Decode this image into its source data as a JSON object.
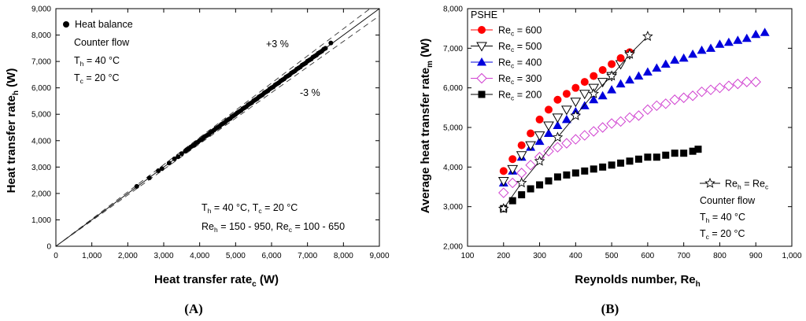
{
  "chart_data": [
    {
      "panel": "A",
      "type": "scatter",
      "xlabel": "Heat transfer rate",
      "xlabel_sub": "c",
      "xlabel_unit": "(W)",
      "ylabel": "Heat transfer rate",
      "ylabel_sub": "h",
      "ylabel_unit": "(W)",
      "xlim": [
        0,
        9000
      ],
      "ylim": [
        0,
        9000
      ],
      "xticks": [
        "0",
        "1,000",
        "2,000",
        "3,000",
        "4,000",
        "5,000",
        "6,000",
        "7,000",
        "8,000",
        "9,000"
      ],
      "yticks": [
        "0",
        "1,000",
        "2,000",
        "3,000",
        "4,000",
        "5,000",
        "6,000",
        "7,000",
        "8,000",
        "9,000"
      ],
      "legend": "Heat balance",
      "lines": [
        {
          "name": "y = x",
          "slope": 1.0,
          "style": "solid"
        },
        {
          "name": "+3 %",
          "slope": 1.03,
          "style": "dashed"
        },
        {
          "name": "-3 %",
          "slope": 0.97,
          "style": "dashed"
        }
      ],
      "annotations": {
        "plus_label": "+3 %",
        "minus_label": "-3 %",
        "flow": "Counter flow",
        "th": {
          "main": "T",
          "sub": "h",
          "rest": " = 40 °C"
        },
        "tc": {
          "main": "T",
          "sub": "c",
          "rest": " = 20 °C"
        },
        "cond_line1": "T_h = 40 °C, T_c = 20 °C",
        "cond_line2": "Re_h = 150 - 950, Re_c = 100 - 650"
      },
      "x": [
        2250,
        2600,
        2850,
        2950,
        3150,
        3300,
        3400,
        3500,
        3600,
        3650,
        3700,
        3750,
        3800,
        3850,
        3900,
        3950,
        4000,
        4050,
        4100,
        4150,
        4200,
        4250,
        4300,
        4350,
        4400,
        4450,
        4500,
        4550,
        4600,
        4650,
        4700,
        4750,
        4800,
        4850,
        4900,
        4950,
        5000,
        5050,
        5100,
        5150,
        5200,
        5250,
        5300,
        5350,
        5400,
        5450,
        5500,
        5550,
        5600,
        5650,
        5700,
        5750,
        5800,
        5850,
        5900,
        5950,
        6000,
        6050,
        6100,
        6150,
        6200,
        6250,
        6300,
        6350,
        6400,
        6450,
        6500,
        6550,
        6600,
        6650,
        6700,
        6750,
        6800,
        6850,
        6900,
        6950,
        7000,
        7050,
        7100,
        7150,
        7200,
        7250,
        7300,
        7350,
        7400,
        7450,
        7500,
        7650
      ],
      "y": [
        2270,
        2590,
        2860,
        2940,
        3150,
        3310,
        3390,
        3510,
        3600,
        3660,
        3700,
        3760,
        3800,
        3840,
        3910,
        3950,
        4010,
        4040,
        4100,
        4160,
        4200,
        4240,
        4310,
        4350,
        4400,
        4460,
        4500,
        4540,
        4610,
        4650,
        4690,
        4760,
        4800,
        4840,
        4910,
        4950,
        5000,
        5060,
        5100,
        5140,
        5210,
        5250,
        5290,
        5360,
        5400,
        5440,
        5510,
        5550,
        5590,
        5660,
        5700,
        5740,
        5810,
        5850,
        5890,
        5960,
        6000,
        6040,
        6110,
        6150,
        6190,
        6260,
        6300,
        6340,
        6410,
        6450,
        6490,
        6560,
        6600,
        6640,
        6710,
        6750,
        6790,
        6860,
        6900,
        6940,
        7010,
        7050,
        7090,
        7160,
        7200,
        7240,
        7310,
        7350,
        7390,
        7460,
        7500,
        7700
      ]
    },
    {
      "panel": "B",
      "type": "scatter",
      "title": "PSHE",
      "xlabel": "Reynolds number, Re",
      "xlabel_sub": "h",
      "ylabel": "Average heat transfer rate",
      "ylabel_sub": "m",
      "ylabel_unit": "(W)",
      "xlim": [
        100,
        1000
      ],
      "ylim": [
        2000,
        8000
      ],
      "xticks": [
        "100",
        "200",
        "300",
        "400",
        "500",
        "600",
        "700",
        "800",
        "900",
        "1,000"
      ],
      "yticks": [
        "2,000",
        "3,000",
        "4,000",
        "5,000",
        "6,000",
        "7,000",
        "8,000"
      ],
      "series": [
        {
          "name": "Re_c = 600",
          "label_main": "Re",
          "label_sub": "c",
          "label_rest": " = 600",
          "marker": "circle",
          "color": "#ff0000",
          "x": [
            200,
            225,
            250,
            275,
            300,
            325,
            350,
            375,
            400,
            425,
            450,
            475,
            500,
            525,
            550
          ],
          "y": [
            3900,
            4200,
            4550,
            4850,
            5200,
            5450,
            5700,
            5850,
            6000,
            6150,
            6300,
            6450,
            6600,
            6750,
            6900
          ]
        },
        {
          "name": "Re_c = 500",
          "label_main": "Re",
          "label_sub": "c",
          "label_rest": " = 500",
          "marker": "triangle-down-open",
          "color": "#000000",
          "x": [
            200,
            225,
            250,
            275,
            300,
            325,
            350,
            375,
            400,
            425,
            450,
            475,
            500,
            525,
            550
          ],
          "y": [
            3650,
            3950,
            4300,
            4550,
            4800,
            5050,
            5250,
            5450,
            5650,
            5850,
            6000,
            6150,
            6300,
            6600,
            6850
          ]
        },
        {
          "name": "Re_c = 400",
          "label_main": "Re",
          "label_sub": "c",
          "label_rest": " = 400",
          "marker": "triangle-up",
          "color": "#0000dd",
          "x": [
            200,
            225,
            250,
            275,
            300,
            325,
            350,
            375,
            400,
            425,
            450,
            475,
            500,
            525,
            550,
            575,
            600,
            625,
            650,
            675,
            700,
            725,
            750,
            775,
            800,
            825,
            850,
            875,
            900,
            925
          ],
          "y": [
            3600,
            3900,
            4250,
            4500,
            4650,
            4850,
            5050,
            5200,
            5400,
            5550,
            5700,
            5800,
            5950,
            6100,
            6200,
            6300,
            6400,
            6500,
            6600,
            6700,
            6750,
            6850,
            6950,
            7000,
            7100,
            7150,
            7200,
            7250,
            7350,
            7400
          ]
        },
        {
          "name": "Re_c = 300",
          "label_main": "Re",
          "label_sub": "c",
          "label_rest": " = 300",
          "marker": "diamond-open",
          "color": "#d040d0",
          "x": [
            200,
            225,
            250,
            275,
            300,
            325,
            350,
            375,
            400,
            425,
            450,
            475,
            500,
            525,
            550,
            575,
            600,
            625,
            650,
            675,
            700,
            725,
            750,
            775,
            800,
            825,
            850,
            875,
            900
          ],
          "y": [
            3350,
            3600,
            3850,
            4050,
            4250,
            4400,
            4500,
            4600,
            4700,
            4800,
            4900,
            5000,
            5100,
            5150,
            5250,
            5300,
            5450,
            5550,
            5600,
            5700,
            5750,
            5800,
            5900,
            5950,
            6000,
            6050,
            6100,
            6150,
            6150
          ]
        },
        {
          "name": "Re_c = 200",
          "label_main": "Re",
          "label_sub": "c",
          "label_rest": " = 200",
          "marker": "square",
          "color": "#000000",
          "x": [
            200,
            225,
            250,
            275,
            300,
            325,
            350,
            375,
            400,
            425,
            450,
            475,
            500,
            525,
            550,
            575,
            600,
            625,
            650,
            675,
            700,
            725,
            740
          ],
          "y": [
            2950,
            3150,
            3300,
            3450,
            3550,
            3650,
            3750,
            3800,
            3850,
            3900,
            3950,
            4000,
            4050,
            4100,
            4150,
            4200,
            4250,
            4250,
            4300,
            4350,
            4350,
            4400,
            4450
          ]
        },
        {
          "name": "Re_h = Re_c",
          "label_main": "Re",
          "label_sub": "h",
          "label_rest": " = Re",
          "label_sub2": "c",
          "marker": "star-open-line",
          "color": "#000000",
          "x": [
            200,
            250,
            300,
            350,
            400,
            450,
            500,
            550,
            600
          ],
          "y": [
            2950,
            3600,
            4150,
            4750,
            5300,
            5850,
            6300,
            6850,
            7300
          ]
        }
      ],
      "annotations": {
        "flow": "Counter flow",
        "th": {
          "main": "T",
          "sub": "h",
          "rest": " = 40 °C"
        },
        "tc": {
          "main": "T",
          "sub": "c",
          "rest": " = 20 °C"
        }
      }
    }
  ],
  "panel_labels": [
    "(A)",
    "(B)"
  ]
}
